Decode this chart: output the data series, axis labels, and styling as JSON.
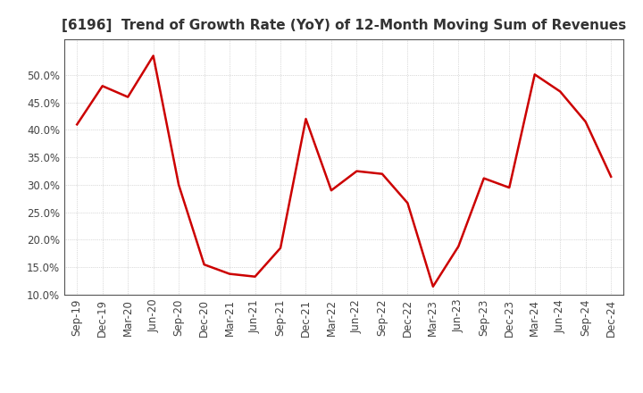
{
  "title": "[6196]  Trend of Growth Rate (YoY) of 12-Month Moving Sum of Revenues",
  "labels": [
    "Sep-19",
    "Dec-19",
    "Mar-20",
    "Jun-20",
    "Sep-20",
    "Dec-20",
    "Mar-21",
    "Jun-21",
    "Sep-21",
    "Dec-21",
    "Mar-22",
    "Jun-22",
    "Sep-22",
    "Dec-22",
    "Mar-23",
    "Jun-23",
    "Sep-23",
    "Dec-23",
    "Mar-24",
    "Jun-24",
    "Sep-24",
    "Dec-24"
  ],
  "values": [
    0.41,
    0.48,
    0.46,
    0.535,
    0.3,
    0.155,
    0.138,
    0.133,
    0.185,
    0.42,
    0.29,
    0.325,
    0.32,
    0.267,
    0.115,
    0.188,
    0.312,
    0.295,
    0.501,
    0.47,
    0.415,
    0.315
  ],
  "line_color": "#cc0000",
  "line_width": 1.8,
  "ylim_min": 0.1,
  "ylim_max": 0.565,
  "yticks": [
    0.1,
    0.15,
    0.2,
    0.25,
    0.3,
    0.35,
    0.4,
    0.45,
    0.5
  ],
  "background_color": "#ffffff",
  "plot_bg_color": "#ffffff",
  "grid_color": "#bbbbbb",
  "title_fontsize": 11,
  "tick_fontsize": 8.5,
  "title_color": "#333333"
}
